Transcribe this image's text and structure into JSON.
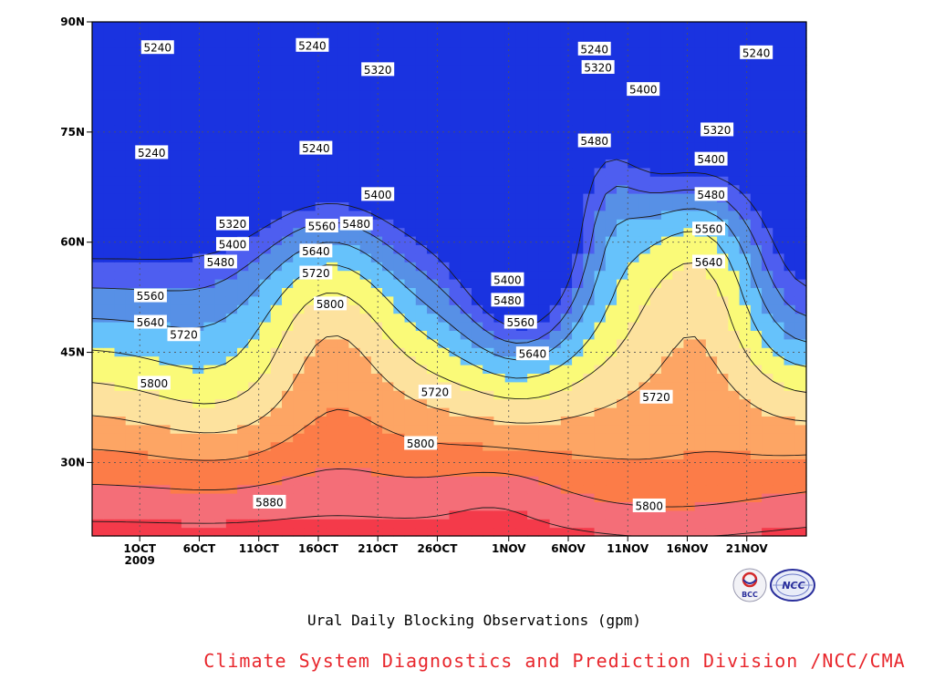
{
  "chart_data": {
    "type": "heatmap",
    "title": "Ural Daily Blocking Observations (gpm)",
    "x_ticks": [
      "1OCT",
      "6OCT",
      "11OCT",
      "16OCT",
      "21OCT",
      "26OCT",
      "1NOV",
      "6NOV",
      "11NOV",
      "16NOV",
      "21NOV"
    ],
    "x_tick_sub": "2009",
    "y_ticks": [
      "90N",
      "75N",
      "60N",
      "45N",
      "30N"
    ],
    "ylim_deg": [
      20,
      90
    ],
    "x_days_range": [
      -3,
      57
    ],
    "contour_levels": [
      5240,
      5320,
      5400,
      5480,
      5560,
      5640,
      5720,
      5800,
      5880
    ],
    "fill_colors": [
      "#0b1872",
      "#1a33e0",
      "#4e5ef0",
      "#5790e6",
      "#66c2fb",
      "#fafa78",
      "#fde29e",
      "#fda564",
      "#fc7c48",
      "#f46e78",
      "#f43a4a"
    ],
    "contour_labels": [
      {
        "text": "5240",
        "day": 2.5,
        "lat": 86.5
      },
      {
        "text": "5240",
        "day": 15.5,
        "lat": 86.8
      },
      {
        "text": "5240",
        "day": 39.2,
        "lat": 86.3
      },
      {
        "text": "5240",
        "day": 52.8,
        "lat": 85.8
      },
      {
        "text": "5320",
        "day": 21.0,
        "lat": 83.5
      },
      {
        "text": "5320",
        "day": 39.5,
        "lat": 83.8
      },
      {
        "text": "5400",
        "day": 43.3,
        "lat": 80.8
      },
      {
        "text": "5240",
        "day": 2.0,
        "lat": 72.2
      },
      {
        "text": "5240",
        "day": 15.8,
        "lat": 72.8
      },
      {
        "text": "5480",
        "day": 39.2,
        "lat": 73.8
      },
      {
        "text": "5320",
        "day": 49.5,
        "lat": 75.3
      },
      {
        "text": "5400",
        "day": 49.0,
        "lat": 71.3
      },
      {
        "text": "5400",
        "day": 21.0,
        "lat": 66.5
      },
      {
        "text": "5480",
        "day": 49.0,
        "lat": 66.5
      },
      {
        "text": "5320",
        "day": 8.8,
        "lat": 62.5
      },
      {
        "text": "5560",
        "day": 16.3,
        "lat": 62.2
      },
      {
        "text": "5480",
        "day": 19.2,
        "lat": 62.5
      },
      {
        "text": "5400",
        "day": 8.8,
        "lat": 59.7
      },
      {
        "text": "5560",
        "day": 48.8,
        "lat": 61.8
      },
      {
        "text": "5640",
        "day": 15.8,
        "lat": 58.8
      },
      {
        "text": "5480",
        "day": 7.8,
        "lat": 57.3
      },
      {
        "text": "5640",
        "day": 48.8,
        "lat": 57.3
      },
      {
        "text": "5720",
        "day": 15.8,
        "lat": 55.8
      },
      {
        "text": "5400",
        "day": 31.9,
        "lat": 54.9
      },
      {
        "text": "5560",
        "day": 1.9,
        "lat": 52.7
      },
      {
        "text": "5480",
        "day": 31.9,
        "lat": 52.1
      },
      {
        "text": "5800",
        "day": 17.0,
        "lat": 51.6
      },
      {
        "text": "5640",
        "day": 1.9,
        "lat": 49.1
      },
      {
        "text": "5560",
        "day": 33.0,
        "lat": 49.1
      },
      {
        "text": "5720",
        "day": 4.7,
        "lat": 47.4
      },
      {
        "text": "5640",
        "day": 34.0,
        "lat": 44.8
      },
      {
        "text": "5800",
        "day": 2.2,
        "lat": 40.8
      },
      {
        "text": "5720",
        "day": 25.8,
        "lat": 39.6
      },
      {
        "text": "5720",
        "day": 44.4,
        "lat": 38.9
      },
      {
        "text": "5800",
        "day": 24.6,
        "lat": 32.6
      },
      {
        "text": "5880",
        "day": 11.9,
        "lat": 24.6
      },
      {
        "text": "5800",
        "day": 43.8,
        "lat": 24.1
      }
    ]
  },
  "logos": {
    "left": {
      "text": "BCC",
      "color": "#2a2f9c"
    },
    "right": {
      "text": "NCC",
      "color": "#2a2f9c"
    }
  },
  "credit": "Climate System Diagnostics and Prediction Division /NCC/CMA"
}
